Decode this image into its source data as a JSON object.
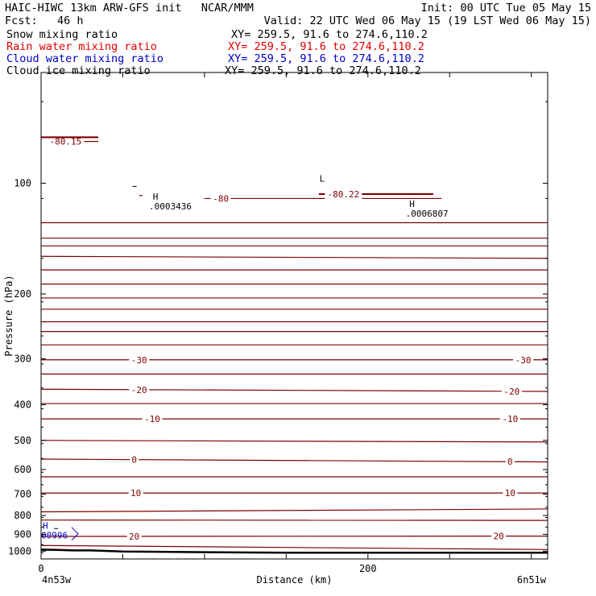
{
  "header": {
    "left_line1": "HAIC-HIWC 13km ARW-GFS init   NCAR/MMM",
    "left_line2": "Fcst:   46 h",
    "init": "Init: 00 UTC Tue 05 May 15",
    "valid": "Valid: 22 UTC Wed 06 May 15 (19 LST Wed 06 May 15)"
  },
  "fields": [
    {
      "name": "Snow mixing ratio",
      "xy": "XY= 259.5, 91.6 to 274.6,110.2",
      "color": "#000000"
    },
    {
      "name": "Rain water mixing ratio",
      "xy": "XY= 259.5, 91.6 to 274.6,110.2",
      "color": "#e00000"
    },
    {
      "name": "Cloud water mixing ratio",
      "xy": "XY= 259.5, 91.6 to 274.6,110.2",
      "color": "#0000c0"
    },
    {
      "name": "Cloud ice mixing ratio",
      "xy": "XY= 259.5, 91.6 to 274.6,110.2",
      "color": "#000000"
    }
  ],
  "chart_data": {
    "type": "line",
    "xlabel": "Distance (km)",
    "ylabel": "Pressure (hPa)",
    "xlim": [
      0,
      310
    ],
    "ylim": [
      1050,
      50
    ],
    "yscale": "log",
    "x_ticks": [
      0,
      200
    ],
    "y_ticks": [
      100,
      200,
      300,
      400,
      500,
      600,
      700,
      800,
      900,
      1000
    ],
    "endpoint_labels": [
      "4n53w",
      "6n51w"
    ],
    "contour_color": "#800000",
    "ground_color": "#000000",
    "temperature_contours": [
      {
        "p": [
          77,
          77
        ],
        "x": [
          5,
          35
        ],
        "label": "-80.15",
        "label_x": [
          15
        ]
      },
      {
        "p": [
          108,
          108
        ],
        "x": [
          60,
          62
        ],
        "label": "",
        "label_x": []
      },
      {
        "p": [
          110,
          110
        ],
        "x": [
          100,
          245
        ],
        "label": "-80",
        "label_x": [
          110
        ]
      },
      {
        "p": [
          128,
          128
        ],
        "x": [
          0,
          310
        ],
        "label": "",
        "label_x": []
      },
      {
        "p": [
          141,
          141
        ],
        "x": [
          0,
          310
        ],
        "label": "",
        "label_x": []
      },
      {
        "p": [
          148,
          148
        ],
        "x": [
          0,
          310
        ],
        "label": "",
        "label_x": []
      },
      {
        "p": [
          158,
          160
        ],
        "x": [
          0,
          310
        ],
        "label": "",
        "label_x": []
      },
      {
        "p": [
          172,
          172
        ],
        "x": [
          0,
          310
        ],
        "label": "",
        "label_x": []
      },
      {
        "p": [
          188,
          188
        ],
        "x": [
          0,
          310
        ],
        "label": "",
        "label_x": []
      },
      {
        "p": [
          205,
          205
        ],
        "x": [
          0,
          310
        ],
        "label": "",
        "label_x": []
      },
      {
        "p": [
          220,
          220
        ],
        "x": [
          0,
          310
        ],
        "label": "",
        "label_x": []
      },
      {
        "p": [
          238,
          238
        ],
        "x": [
          0,
          310
        ],
        "label": "",
        "label_x": []
      },
      {
        "p": [
          253,
          253
        ],
        "x": [
          0,
          310
        ],
        "label": "",
        "label_x": []
      },
      {
        "p": [
          275,
          275
        ],
        "x": [
          0,
          310
        ],
        "label": "",
        "label_x": []
      },
      {
        "p": [
          302,
          302
        ],
        "x": [
          0,
          310
        ],
        "label": "-30",
        "label_x": [
          60,
          295
        ]
      },
      {
        "p": [
          330,
          330
        ],
        "x": [
          0,
          310
        ],
        "label": "",
        "label_x": []
      },
      {
        "p": [
          363,
          368
        ],
        "x": [
          0,
          310
        ],
        "label": "-20",
        "label_x": [
          60,
          288
        ]
      },
      {
        "p": [
          397,
          397
        ],
        "x": [
          0,
          310
        ],
        "label": "",
        "label_x": []
      },
      {
        "p": [
          437,
          437
        ],
        "x": [
          0,
          310
        ],
        "label": "-10",
        "label_x": [
          68,
          287
        ]
      },
      {
        "p": [
          500,
          505
        ],
        "x": [
          0,
          310
        ],
        "label": "",
        "label_x": []
      },
      {
        "p": [
          562,
          572
        ],
        "x": [
          0,
          310
        ],
        "label": "0",
        "label_x": [
          57,
          287
        ]
      },
      {
        "p": [
          628,
          628
        ],
        "x": [
          0,
          310
        ],
        "label": "",
        "label_x": []
      },
      {
        "p": [
          695,
          695
        ],
        "x": [
          0,
          310
        ],
        "label": "10",
        "label_x": [
          58,
          287
        ]
      },
      {
        "p": [
          782,
          768
        ],
        "x": [
          0,
          310
        ],
        "label": "",
        "label_x": []
      },
      {
        "p": [
          823,
          825
        ],
        "x": [
          0,
          310
        ],
        "label": "",
        "label_x": []
      },
      {
        "p": [
          912,
          910
        ],
        "x": [
          0,
          310
        ],
        "label": "20",
        "label_x": [
          57,
          280
        ]
      },
      {
        "p": [
          965,
          990
        ],
        "x": [
          0,
          310
        ],
        "label": "",
        "label_x": []
      }
    ],
    "bold_contours": [
      {
        "p": [
          75,
          75
        ],
        "x": [
          0,
          35
        ],
        "label": "",
        "label_x": []
      },
      {
        "p": [
          107,
          107
        ],
        "x": [
          170,
          240
        ],
        "label": "-80.22",
        "label_x": [
          185
        ]
      }
    ],
    "ground": {
      "x": [
        0,
        10,
        20,
        30,
        50,
        80,
        120,
        150,
        200,
        250,
        310
      ],
      "p": [
        990,
        992,
        995,
        995,
        1002,
        1005,
        1008,
        1010,
        1010,
        1010,
        1010
      ]
    },
    "extrema": [
      {
        "kind": "H",
        "x": 70,
        "p": 111,
        "value": ".0003436",
        "color": "#000000"
      },
      {
        "kind": "L",
        "x": 172,
        "p": 99,
        "value": "",
        "color": "#000000"
      },
      {
        "kind": "H",
        "x": 227,
        "p": 116,
        "value": ".0006807",
        "color": "#000000"
      },
      {
        "kind": "H",
        "x": 0,
        "p": 870,
        "value": "00996",
        "color": "#0000c0"
      }
    ],
    "dashes": [
      {
        "x": 57,
        "p": 102
      },
      {
        "x": 9,
        "p": 868
      }
    ]
  }
}
